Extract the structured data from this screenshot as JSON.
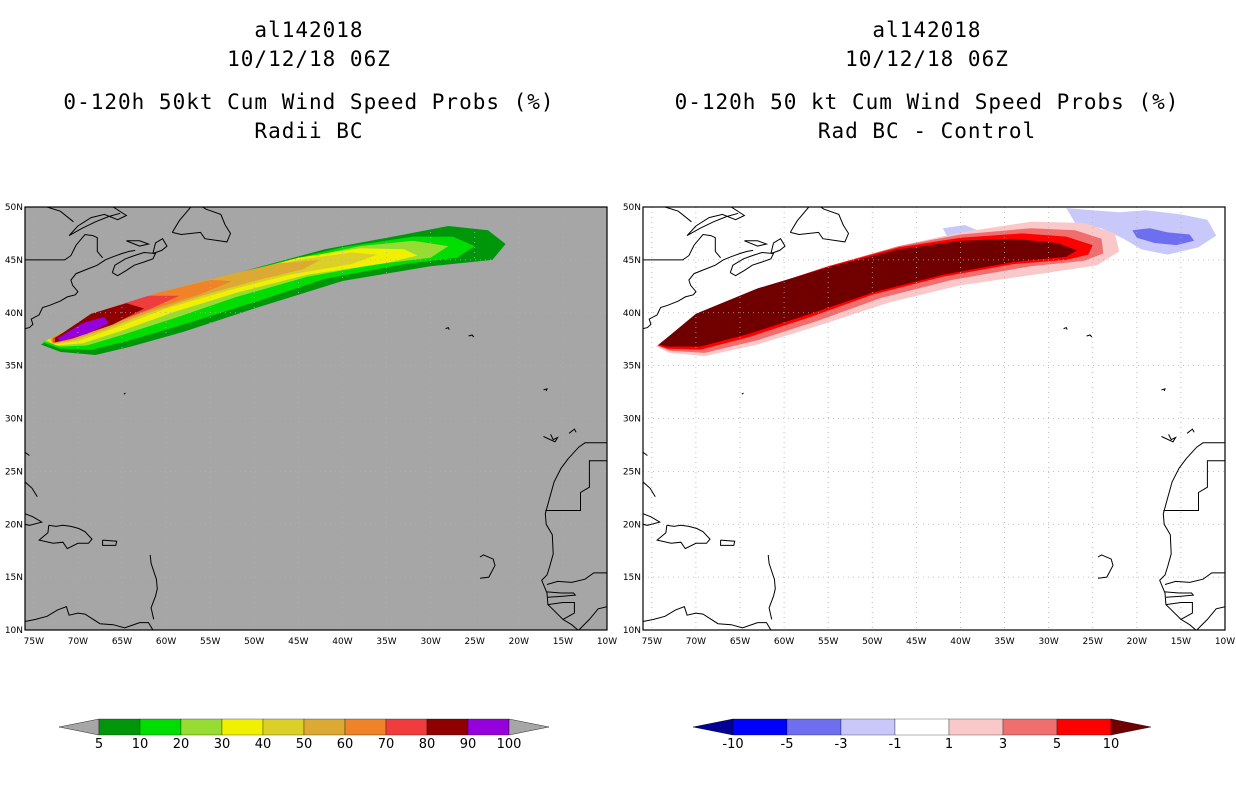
{
  "left_panel": {
    "storm_id": "al142018",
    "datetime": "10/12/18 06Z",
    "title": "0-120h 50kt Cum Wind Speed Probs (%)",
    "subtitle": "Radii BC",
    "background_color": "#a6a6a6",
    "colorbar": {
      "labels": [
        "5",
        "10",
        "20",
        "30",
        "40",
        "50",
        "60",
        "70",
        "80",
        "90",
        "100"
      ],
      "colors": [
        "#00960a",
        "#00dd00",
        "#96dc32",
        "#f0f000",
        "#dcd028",
        "#dcaa32",
        "#f08228",
        "#f03c3c",
        "#910000",
        "#9600dc"
      ],
      "extend_color": "#a6a6a6"
    }
  },
  "right_panel": {
    "storm_id": "al142018",
    "datetime": "10/12/18 06Z",
    "title": "0-120h 50 kt Cum Wind Speed Probs (%)",
    "subtitle": "Rad BC - Control",
    "background_color": "#ffffff",
    "colorbar": {
      "labels": [
        "-10",
        "-5",
        "-3",
        "-1",
        "1",
        "3",
        "5",
        "10"
      ],
      "colors": [
        "#0000ff",
        "#6e6ef0",
        "#c8c8fa",
        "#ffffff",
        "#fac8c8",
        "#f06e6e",
        "#ff0000"
      ],
      "extend_low_color": "#000096",
      "extend_high_color": "#700000"
    }
  },
  "map_axes": {
    "lat_labels": [
      "50N",
      "45N",
      "40N",
      "35N",
      "30N",
      "25N",
      "20N",
      "15N",
      "10N"
    ],
    "lon_labels": [
      "75W",
      "70W",
      "65W",
      "60W",
      "55W",
      "50W",
      "45W",
      "40W",
      "35W",
      "30W",
      "25W",
      "20W",
      "15W",
      "10W"
    ],
    "lat_range": [
      10,
      50
    ],
    "lon_range": [
      -76,
      -10
    ]
  }
}
